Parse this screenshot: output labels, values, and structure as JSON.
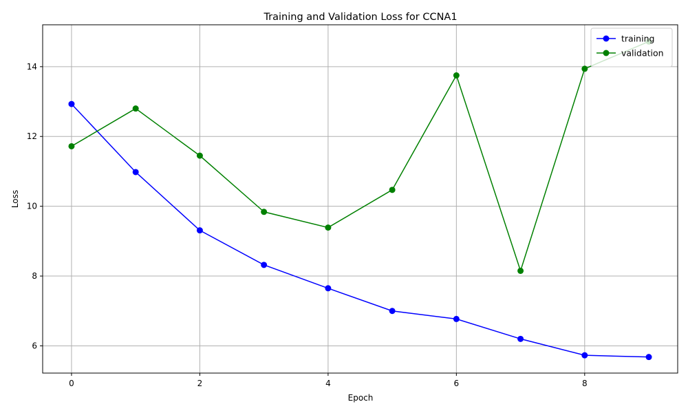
{
  "chart_data": {
    "type": "line",
    "title": "Training and Validation Loss for CCNA1",
    "xlabel": "Epoch",
    "ylabel": "Loss",
    "xlim": [
      -0.45,
      9.45
    ],
    "ylim": [
      5.22,
      15.2
    ],
    "x_ticks": [
      0,
      2,
      4,
      6,
      8
    ],
    "y_ticks": [
      6,
      8,
      10,
      12,
      14
    ],
    "grid": true,
    "legend_position": "top-right",
    "x": [
      0,
      1,
      2,
      3,
      4,
      5,
      6,
      7,
      8,
      9
    ],
    "series": [
      {
        "name": "training",
        "color": "#0000ff",
        "marker": "circle",
        "values": [
          12.93,
          10.98,
          9.31,
          8.32,
          7.65,
          7.0,
          6.77,
          6.2,
          5.73,
          5.68
        ]
      },
      {
        "name": "validation",
        "color": "#008000",
        "marker": "circle",
        "values": [
          11.72,
          12.8,
          11.45,
          9.84,
          9.39,
          10.47,
          13.75,
          8.15,
          13.94,
          14.72
        ]
      }
    ]
  }
}
